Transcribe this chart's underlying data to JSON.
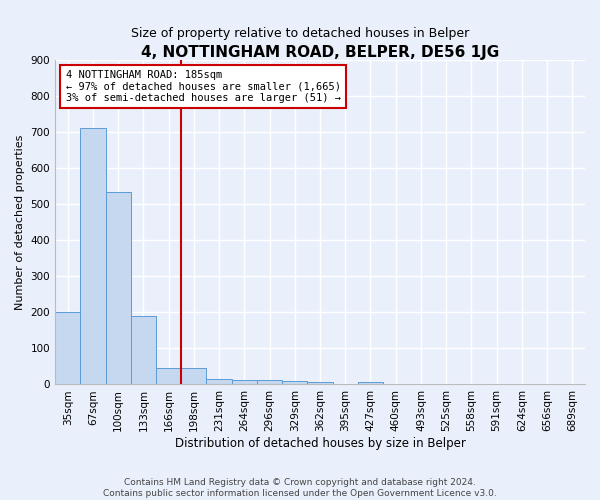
{
  "title": "4, NOTTINGHAM ROAD, BELPER, DE56 1JG",
  "subtitle": "Size of property relative to detached houses in Belper",
  "xlabel": "Distribution of detached houses by size in Belper",
  "ylabel": "Number of detached properties",
  "categories": [
    "35sqm",
    "67sqm",
    "100sqm",
    "133sqm",
    "166sqm",
    "198sqm",
    "231sqm",
    "264sqm",
    "296sqm",
    "329sqm",
    "362sqm",
    "395sqm",
    "427sqm",
    "460sqm",
    "493sqm",
    "525sqm",
    "558sqm",
    "591sqm",
    "624sqm",
    "656sqm",
    "689sqm"
  ],
  "values": [
    202,
    710,
    535,
    191,
    45,
    45,
    15,
    13,
    11,
    9,
    8,
    0,
    8,
    0,
    0,
    0,
    0,
    0,
    0,
    0,
    0
  ],
  "bar_color": "#c5d8f0",
  "bar_edge_color": "#5b9bd5",
  "property_line_x": 4.5,
  "annotation_text": "4 NOTTINGHAM ROAD: 185sqm\n← 97% of detached houses are smaller (1,665)\n3% of semi-detached houses are larger (51) →",
  "annotation_box_color": "#ffffff",
  "annotation_box_edge_color": "#cc0000",
  "ylim": [
    0,
    900
  ],
  "yticks": [
    0,
    100,
    200,
    300,
    400,
    500,
    600,
    700,
    800,
    900
  ],
  "footer_line1": "Contains HM Land Registry data © Crown copyright and database right 2024.",
  "footer_line2": "Contains public sector information licensed under the Open Government Licence v3.0.",
  "bg_color": "#eaf0fb",
  "plot_bg_color": "#eaf0fb",
  "grid_color": "#ffffff",
  "title_fontsize": 11,
  "subtitle_fontsize": 9,
  "ylabel_fontsize": 8,
  "xlabel_fontsize": 8.5,
  "tick_fontsize": 7.5,
  "annotation_fontsize": 7.5,
  "footer_fontsize": 6.5
}
